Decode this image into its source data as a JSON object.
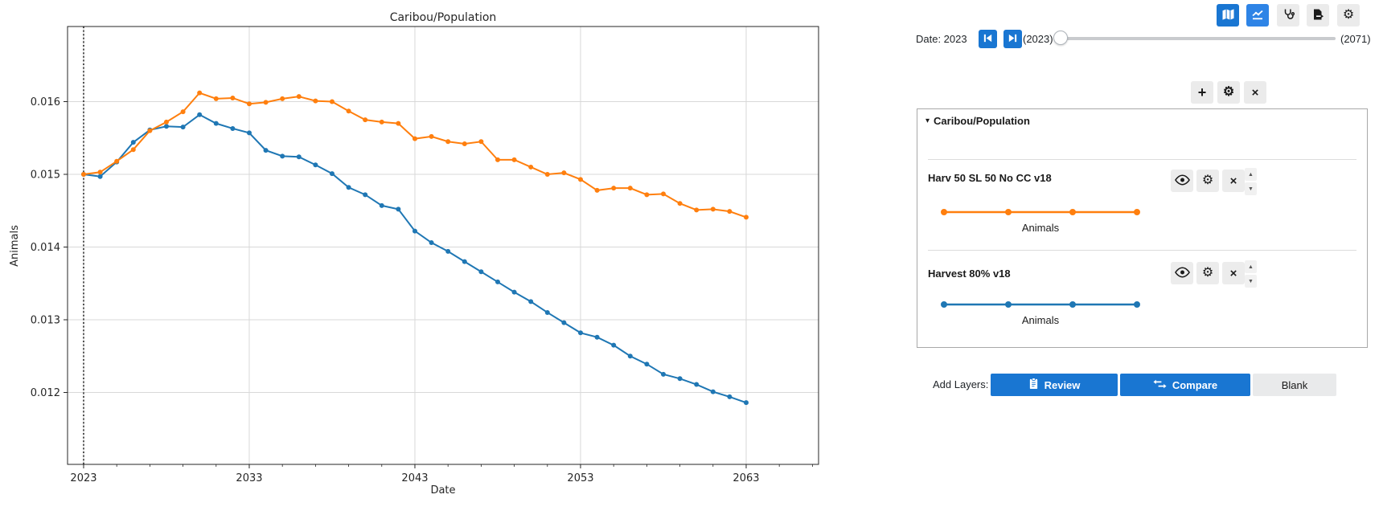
{
  "icons": {
    "caret_down": "▾",
    "plus": "+",
    "gear": "⚙",
    "close": "×",
    "up_arrow": "▲",
    "down_arrow": "▼"
  },
  "date_bar": {
    "label": "Date: 2023",
    "min_label": "(2023)",
    "max_label": "(2071)",
    "slider_min": 2023,
    "slider_max": 2071,
    "slider_value": 2023
  },
  "panel": {
    "title": "Caribou/Population",
    "layers": [
      {
        "name": "Harv 50 SL 50 No CC v18",
        "legend_label": "Animals",
        "color": "#ff7f0e"
      },
      {
        "name": "Harvest 80% v18",
        "legend_label": "Animals",
        "color": "#1f77b4"
      }
    ]
  },
  "add_layers": {
    "label": "Add Layers:",
    "buttons": [
      {
        "label": "Review"
      },
      {
        "label": "Compare"
      },
      {
        "label": "Blank"
      }
    ]
  },
  "chart_data": {
    "type": "line",
    "title": "Caribou/Population",
    "xlabel": "Date",
    "ylabel": "Animals",
    "xlim": [
      2022.03,
      2067.37
    ],
    "ylim": [
      0.011011,
      0.017033
    ],
    "x_ticks": [
      2023,
      2033,
      2043,
      2053,
      2063
    ],
    "x_minor_tick_step": 2,
    "y_ticks": [
      0.012,
      0.013,
      0.014,
      0.015,
      0.016
    ],
    "grid": true,
    "vline": {
      "x": 2023,
      "style": "dotted",
      "color": "#1a1a1a"
    },
    "x": [
      2023,
      2024,
      2025,
      2026,
      2027,
      2028,
      2029,
      2030,
      2031,
      2032,
      2033,
      2034,
      2035,
      2036,
      2037,
      2038,
      2039,
      2040,
      2041,
      2042,
      2043,
      2044,
      2045,
      2046,
      2047,
      2048,
      2049,
      2050,
      2051,
      2052,
      2053,
      2054,
      2055,
      2056,
      2057,
      2058,
      2059,
      2060,
      2061,
      2062,
      2063
    ],
    "series": [
      {
        "name": "Harvest 80% v18",
        "color": "#1f77b4",
        "values": [
          0.015,
          0.01497,
          0.01517,
          0.01544,
          0.01561,
          0.01566,
          0.01565,
          0.01582,
          0.0157,
          0.01563,
          0.01557,
          0.01533,
          0.01525,
          0.01524,
          0.01513,
          0.01501,
          0.01482,
          0.01472,
          0.01457,
          0.01452,
          0.01422,
          0.01406,
          0.01394,
          0.0138,
          0.01366,
          0.01352,
          0.01338,
          0.01325,
          0.0131,
          0.01296,
          0.01282,
          0.01276,
          0.01265,
          0.0125,
          0.01239,
          0.01225,
          0.01219,
          0.01211,
          0.01201,
          0.01194,
          0.01186
        ]
      },
      {
        "name": "Harv 50 SL 50 No CC v18",
        "color": "#ff7f0e",
        "values": [
          0.015,
          0.01503,
          0.01518,
          0.01534,
          0.0156,
          0.01572,
          0.01586,
          0.01612,
          0.01604,
          0.01605,
          0.01597,
          0.01599,
          0.01604,
          0.01607,
          0.01601,
          0.016,
          0.01587,
          0.01575,
          0.01572,
          0.0157,
          0.01549,
          0.01552,
          0.01545,
          0.01542,
          0.01545,
          0.0152,
          0.0152,
          0.0151,
          0.015,
          0.01502,
          0.01493,
          0.01478,
          0.01481,
          0.01481,
          0.01472,
          0.01473,
          0.0146,
          0.01451,
          0.01452,
          0.01449,
          0.01441
        ]
      }
    ]
  }
}
